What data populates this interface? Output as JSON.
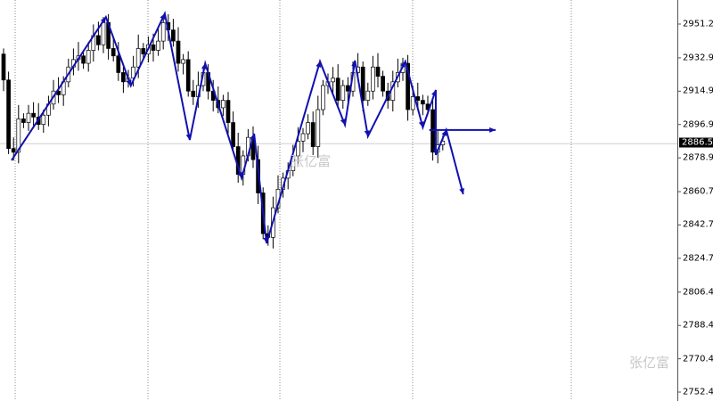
{
  "chart_data": {
    "type": "candlestick",
    "title": "",
    "xlabel": "",
    "ylabel": "",
    "ylim": [
      2752.45,
      2951.2
    ],
    "y_ticks": [
      "2951.20",
      "2932.95",
      "2914.95",
      "2896.95",
      "2878.95",
      "2860.70",
      "2842.70",
      "2824.70",
      "2806.45",
      "2788.45",
      "2770.45",
      "2752.45"
    ],
    "current_price": "2886.59",
    "first_open": 2935,
    "closes": [
      2921,
      2884,
      2882,
      2900,
      2898,
      2903,
      2901,
      2897,
      2902,
      2908,
      2915,
      2913,
      2920,
      2928,
      2932,
      2934,
      2930,
      2937,
      2945,
      2940,
      2952,
      2938,
      2934,
      2925,
      2920,
      2922,
      2928,
      2938,
      2935,
      2940,
      2937,
      2942,
      2952,
      2948,
      2942,
      2930,
      2932,
      2915,
      2912,
      2918,
      2925,
      2915,
      2910,
      2906,
      2910,
      2898,
      2885,
      2870,
      2880,
      2890,
      2878,
      2860,
      2838,
      2836,
      2852,
      2862,
      2868,
      2872,
      2880,
      2888,
      2892,
      2898,
      2885,
      2905,
      2918,
      2920,
      2922,
      2910,
      2918,
      2915,
      2925,
      2928,
      2910,
      2915,
      2928,
      2923,
      2915,
      2910,
      2920,
      2925,
      2930,
      2905,
      2912,
      2910,
      2908,
      2905,
      2882,
      2886,
      2888
    ],
    "zigzag": [
      [
        1.6,
        2877.6
      ],
      [
        20.5,
        2955.0
      ],
      [
        25.5,
        2917.9
      ],
      [
        32.3,
        2956.9
      ],
      [
        37.3,
        2888.6
      ],
      [
        40.4,
        2930.0
      ],
      [
        47.7,
        2868.0
      ],
      [
        50.2,
        2892.0
      ],
      [
        52.7,
        2832.8
      ],
      [
        63.4,
        2931.0
      ],
      [
        68.4,
        2896.8
      ],
      [
        70.4,
        2931.5
      ],
      [
        73,
        2890.6
      ],
      [
        80.5,
        2931.0
      ],
      [
        84,
        2895.4
      ],
      [
        86.6,
        2915.6
      ],
      [
        86.6,
        2880.5
      ],
      [
        88.7,
        2894.0
      ],
      [
        92.1,
        2859.3
      ]
    ],
    "horizontal_arrow": {
      "price": 2894.0,
      "from": 85.3,
      "to": 98.6
    },
    "colors": {
      "bull": "#ffffff",
      "bear": "#000000",
      "wick": "#000000",
      "zigzag": "#1010b0",
      "grid": "#888888",
      "current_line": "#d0d0d0"
    },
    "grid": "vertical-dotted"
  },
  "watermark": "张亿富"
}
